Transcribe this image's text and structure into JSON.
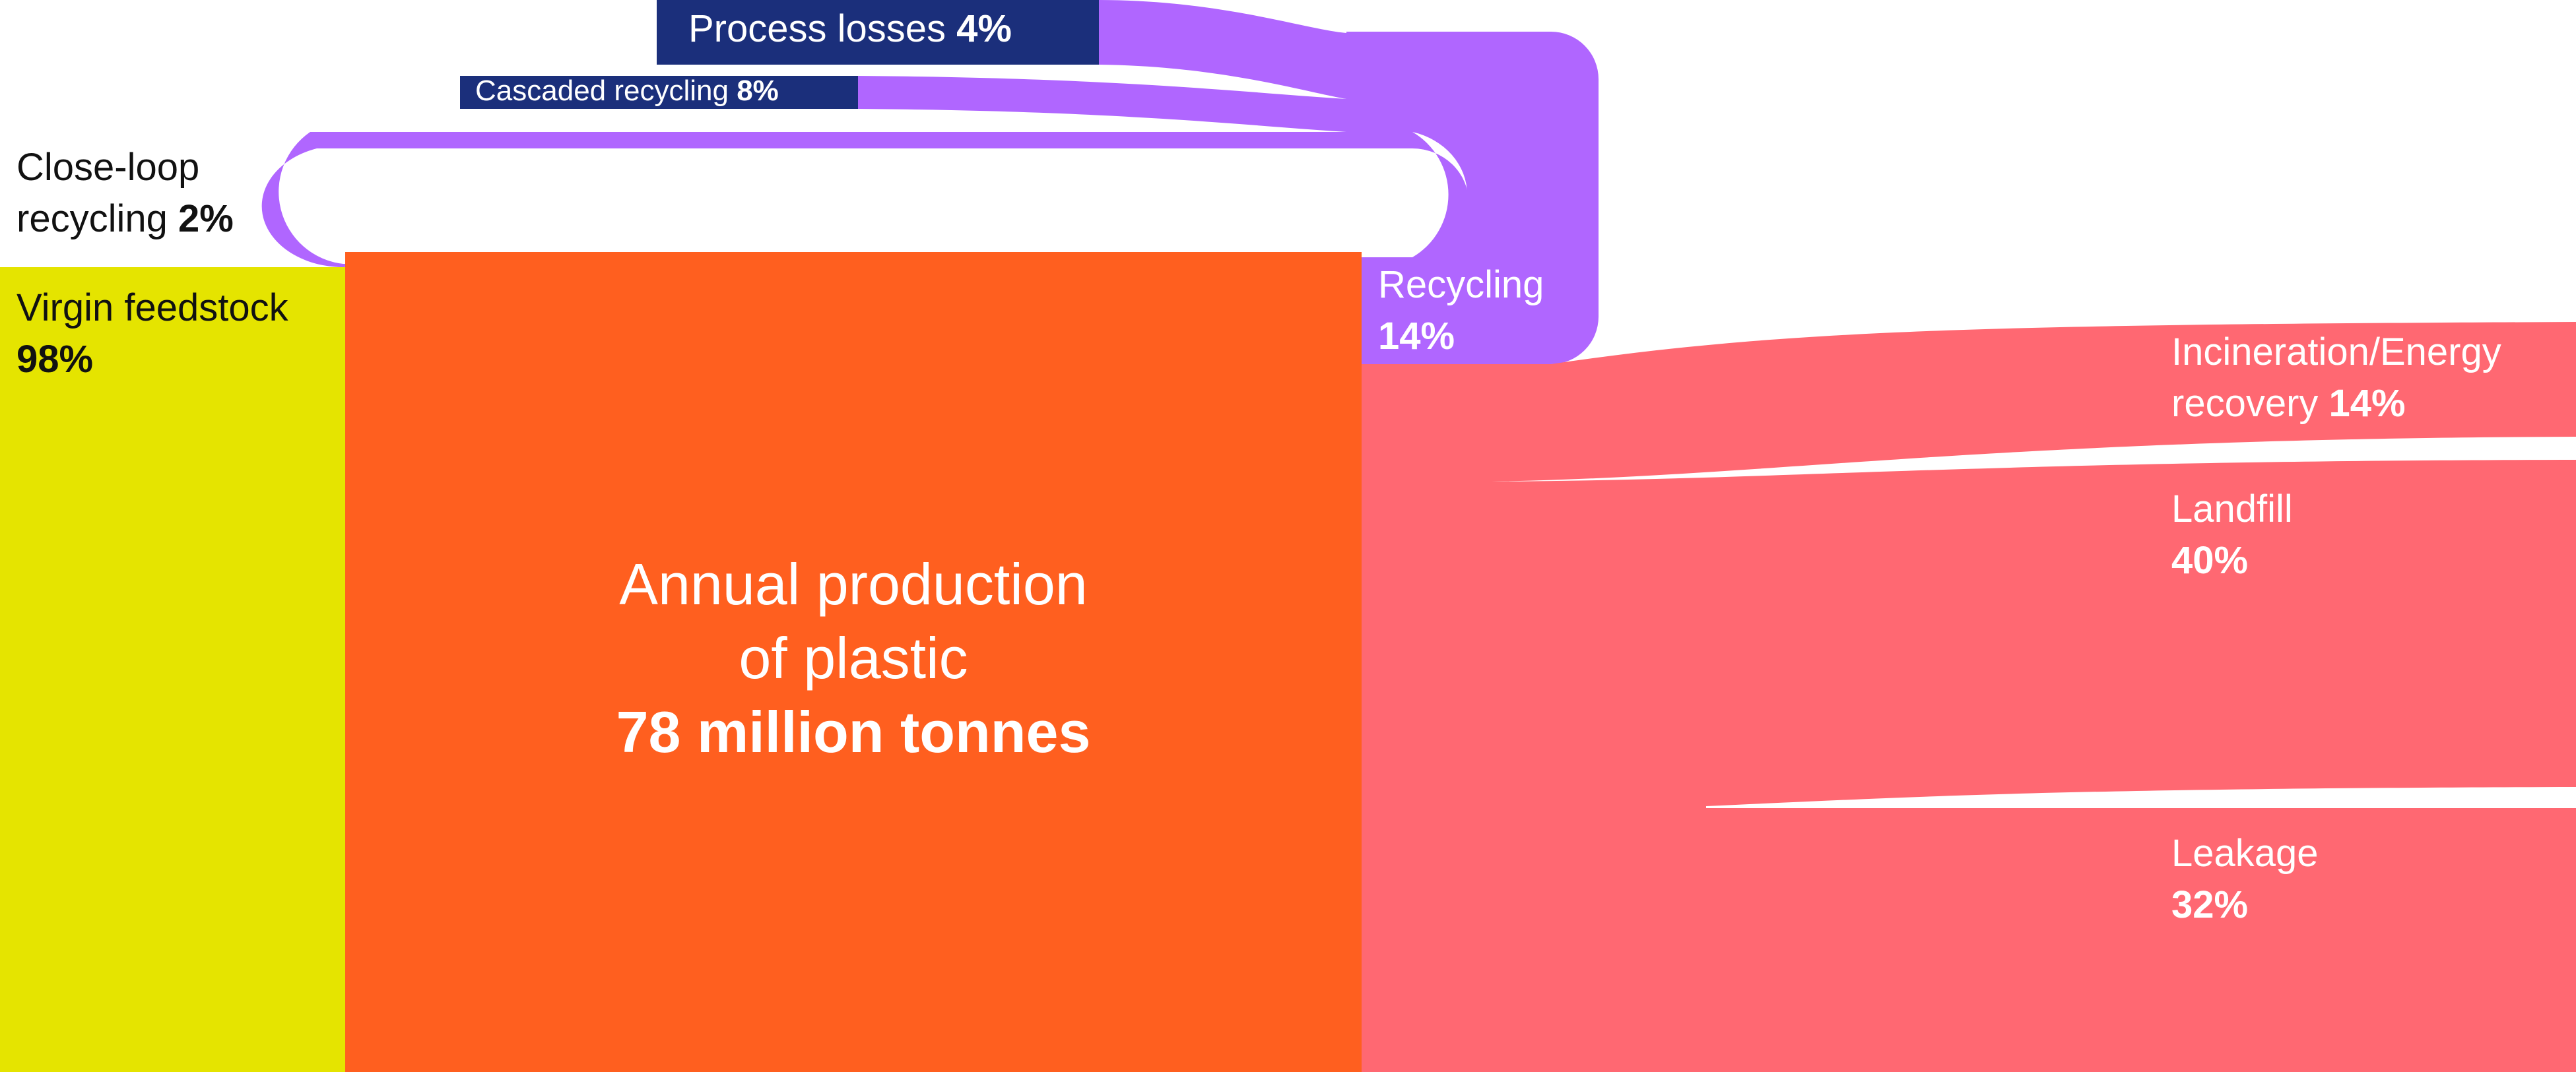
{
  "colors": {
    "virgin": "#E5E400",
    "production": "#FF5F1F",
    "recycling": "#B066FF",
    "end_of_life": "#FF6872",
    "process_box": "#1B2F7B",
    "background": "#FFFFFF"
  },
  "nodes": {
    "virgin_feedstock": {
      "label": "Virgin feedstock",
      "value": "98%"
    },
    "close_loop": {
      "label_line1": "Close-loop",
      "label_line2": "recycling",
      "value": "2%"
    },
    "production": {
      "line1": "Annual production",
      "line2": "of plastic",
      "value": "78 million tonnes"
    },
    "recycling": {
      "label": "Recycling",
      "value": "14%"
    },
    "process_losses": {
      "label": "Process losses",
      "value": "4%"
    },
    "cascaded": {
      "label": "Cascaded recycling",
      "value": "8%"
    },
    "incineration": {
      "label_line1": "Incineration/Energy",
      "label_line2": "recovery",
      "value": "14%"
    },
    "landfill": {
      "label": "Landfill",
      "value": "40%"
    },
    "leakage": {
      "label": "Leakage",
      "value": "32%"
    }
  }
}
